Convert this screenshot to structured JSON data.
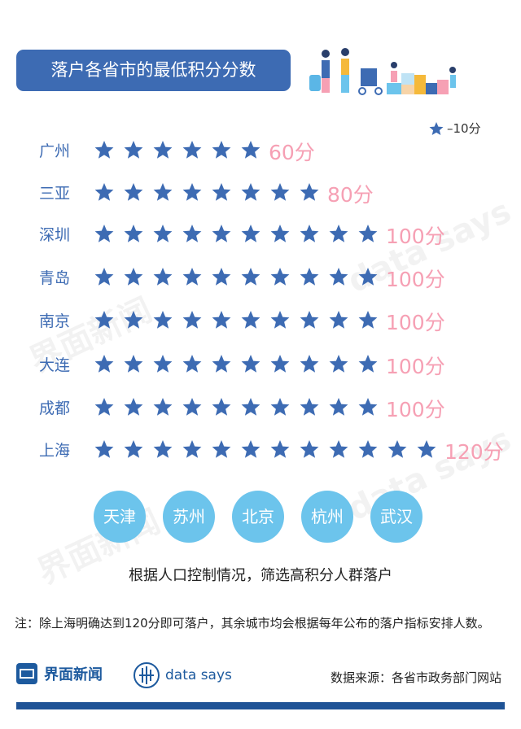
{
  "title": "落户各省市的最低积分分数",
  "legend": {
    "icon": "star-icon",
    "label": "–10分"
  },
  "colors": {
    "star": "#3d6bb3",
    "score": "#f6a0b4",
    "circle": "#6cc4ec",
    "title_bg": "#3d6bb3"
  },
  "chart_data": {
    "type": "pictograph",
    "unit_per_icon": 10,
    "categories": [
      "广州",
      "三亚",
      "深圳",
      "青岛",
      "南京",
      "大连",
      "成都",
      "上海"
    ],
    "values": [
      60,
      80,
      100,
      100,
      100,
      100,
      100,
      120
    ],
    "value_labels": [
      "60分",
      "80分",
      "100分",
      "100分",
      "100分",
      "100分",
      "100分",
      "120分"
    ]
  },
  "other_cities": [
    "天津",
    "苏州",
    "北京",
    "杭州",
    "武汉"
  ],
  "caption": "根据人口控制情况，筛选高积分人群落户",
  "note": "注：除上海明确达到120分即可落户，其余城市均会根据每年公布的落户指标安排人数。",
  "footer": {
    "brand": "界面新闻",
    "datasays": "data says",
    "source": "数据来源：各省市政务部门网站"
  },
  "watermarks": [
    "界面新闻",
    "data says"
  ]
}
